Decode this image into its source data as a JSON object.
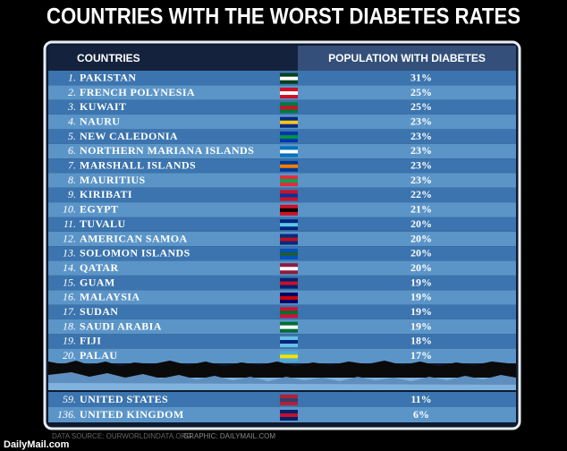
{
  "title": "COUNTRIES WITH THE WORST DIABETES RATES",
  "table": {
    "headers": [
      "COUNTRIES",
      "POPULATION WITH DIABETES"
    ],
    "rows": [
      {
        "rank": "1.",
        "country": "PAKISTAN",
        "value": "31%"
      },
      {
        "rank": "2.",
        "country": "FRENCH POLYNESIA",
        "value": "25%"
      },
      {
        "rank": "3.",
        "country": "KUWAIT",
        "value": "25%"
      },
      {
        "rank": "4.",
        "country": "NAURU",
        "value": "23%"
      },
      {
        "rank": "5.",
        "country": "NEW CALEDONIA",
        "value": "23%"
      },
      {
        "rank": "6.",
        "country": "NORTHERN MARIANA ISLANDS",
        "value": "23%"
      },
      {
        "rank": "7.",
        "country": "MARSHALL ISLANDS",
        "value": "23%"
      },
      {
        "rank": "8.",
        "country": "MAURITIUS",
        "value": "23%"
      },
      {
        "rank": "9.",
        "country": "KIRIBATI",
        "value": "22%"
      },
      {
        "rank": "10.",
        "country": "EGYPT",
        "value": "21%"
      },
      {
        "rank": "11.",
        "country": "TUVALU",
        "value": "20%"
      },
      {
        "rank": "12.",
        "country": "AMERICAN SAMOA",
        "value": "20%"
      },
      {
        "rank": "13.",
        "country": "SOLOMON ISLANDS",
        "value": "20%"
      },
      {
        "rank": "14.",
        "country": "QATAR",
        "value": "20%"
      },
      {
        "rank": "15.",
        "country": "GUAM",
        "value": "19%"
      },
      {
        "rank": "16.",
        "country": "MALAYSIA",
        "value": "19%"
      },
      {
        "rank": "17.",
        "country": "SUDAN",
        "value": "19%"
      },
      {
        "rank": "18.",
        "country": "SAUDI ARABIA",
        "value": "19%"
      },
      {
        "rank": "19.",
        "country": "FIJI",
        "value": "18%"
      },
      {
        "rank": "20.",
        "country": "PALAU",
        "value": "17%"
      }
    ],
    "extra_rows": [
      {
        "rank": "59.",
        "country": "UNITED STATES",
        "value": "11%"
      },
      {
        "rank": "136.",
        "country": "UNITED KINGDOM",
        "value": "6%"
      }
    ]
  },
  "footer": {
    "source": "DATA SOURCE: OURWORLDINDATA.ORG",
    "graphic": "GRAPHIC: DAILYMAIL.COM",
    "logo": "DailyMail.com"
  }
}
